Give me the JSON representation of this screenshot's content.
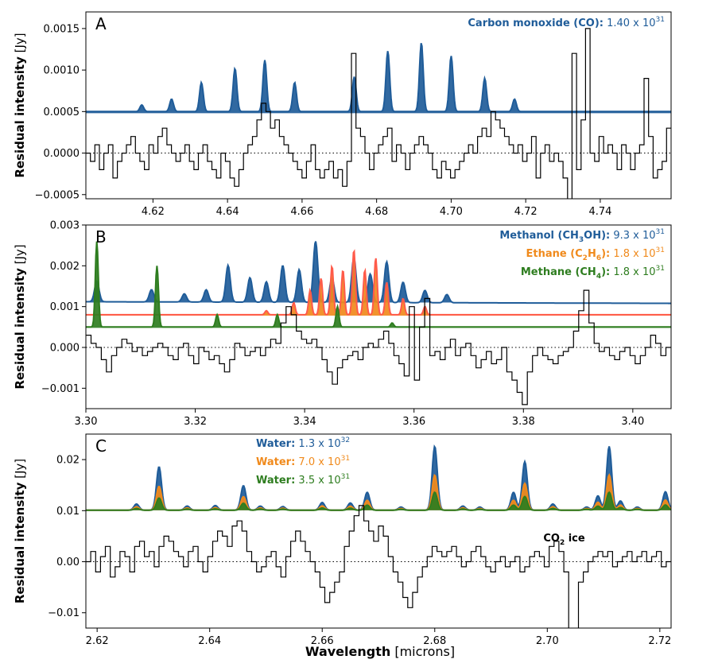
{
  "figure": {
    "xlabel": "Wavelength",
    "xlabel_unit": "[microns]"
  },
  "chart_data": [
    {
      "type": "line",
      "panel": "A",
      "ylabel": "Residual intensity",
      "ylabel_unit": "[Jy]",
      "xlim": [
        4.602,
        4.759
      ],
      "ylim": [
        -0.00055,
        0.0017
      ],
      "xticks": [
        4.62,
        4.64,
        4.66,
        4.68,
        4.7,
        4.72,
        4.74
      ],
      "xtick_labels": [
        "4.62",
        "4.64",
        "4.66",
        "4.68",
        "4.70",
        "4.72",
        "4.74"
      ],
      "yticks": [
        -0.0005,
        0.0,
        0.0005,
        0.001,
        0.0015
      ],
      "ytick_labels": [
        "−0.0005",
        "0.0000",
        "0.0005",
        "0.0010",
        "0.0015"
      ],
      "zero_line": "dotted",
      "legend": [
        {
          "name": "Carbon monoxide (CO):",
          "value_text": "1.40 x 10",
          "exp": "31",
          "color": "#1f5c99"
        }
      ],
      "models": [
        {
          "color": "#1f5c99",
          "baseline": 0.0005,
          "width": 0.0011,
          "lines": [
            [
              4.617,
              8e-05
            ],
            [
              4.625,
              0.00015
            ],
            [
              4.633,
              0.00035
            ],
            [
              4.642,
              0.00052
            ],
            [
              4.65,
              0.00062
            ],
            [
              4.658,
              0.00035
            ],
            [
              4.674,
              0.00042
            ],
            [
              4.683,
              0.00073
            ],
            [
              4.692,
              0.00083
            ],
            [
              4.7,
              0.00067
            ],
            [
              4.709,
              0.0004
            ],
            [
              4.717,
              0.00015
            ]
          ]
        }
      ],
      "residual": {
        "x_start": 4.602,
        "x_end": 4.759,
        "values": [
          0.0,
          -0.0001,
          0.0001,
          -0.0002,
          0.0,
          0.0001,
          -0.0003,
          -0.0001,
          0.0,
          0.0001,
          0.0002,
          0.0,
          -0.0001,
          -0.0002,
          0.0001,
          0.0,
          0.0002,
          0.0003,
          0.0001,
          0.0,
          -0.0001,
          0.0,
          0.0001,
          -0.0001,
          -0.0002,
          0.0,
          0.0001,
          -0.0001,
          -0.0002,
          -0.0003,
          0.0,
          -0.0001,
          -0.0003,
          -0.0004,
          -0.0002,
          0.0,
          0.0001,
          0.0002,
          0.0004,
          0.0006,
          0.0005,
          0.0003,
          0.0004,
          0.0002,
          0.0001,
          0.0,
          -0.0001,
          -0.0002,
          -0.0003,
          -0.0001,
          0.0001,
          -0.0002,
          -0.0003,
          -0.0002,
          -0.0001,
          -0.0003,
          -0.0002,
          -0.0004,
          -0.0001,
          0.0012,
          0.0003,
          0.0002,
          0.0,
          -0.0002,
          0.0,
          0.0001,
          0.0002,
          0.0003,
          -0.0001,
          0.0001,
          0.0,
          -0.0002,
          0.0,
          0.0001,
          0.0002,
          0.0001,
          0.0,
          -0.0002,
          -0.0003,
          -0.0001,
          -0.0002,
          -0.0003,
          -0.0002,
          -0.0001,
          0.0,
          0.0001,
          0.0,
          0.0002,
          0.0003,
          0.0002,
          0.0005,
          0.0004,
          0.0003,
          0.0002,
          0.0001,
          0.0,
          0.0001,
          -0.0001,
          0.0,
          0.0002,
          -0.0003,
          0.0,
          0.0001,
          -0.0001,
          0.0,
          -0.0001,
          -0.0003,
          -0.0006,
          0.0012,
          -0.0002,
          0.0004,
          0.0015,
          0.0,
          -0.0001,
          0.0002,
          0.0,
          0.0001,
          0.0,
          -0.0002,
          0.0001,
          0.0,
          -0.0002,
          0.0,
          0.0001,
          0.0009,
          0.0002,
          -0.0003,
          -0.0002,
          -0.0001,
          0.0003
        ]
      }
    },
    {
      "type": "line",
      "panel": "B",
      "ylabel": "Residual intensity",
      "ylabel_unit": "[Jy]",
      "xlim": [
        3.3,
        3.407
      ],
      "ylim": [
        -0.0015,
        0.003
      ],
      "xticks": [
        3.3,
        3.32,
        3.34,
        3.36,
        3.38,
        3.4
      ],
      "xtick_labels": [
        "3.30",
        "3.32",
        "3.34",
        "3.36",
        "3.38",
        "3.40"
      ],
      "yticks": [
        -0.001,
        0.0,
        0.001,
        0.002,
        0.003
      ],
      "ytick_labels": [
        "−0.001",
        "0.000",
        "0.001",
        "0.002",
        "0.003"
      ],
      "zero_line": "dotted",
      "legend": [
        {
          "name": "Methanol (CH",
          "sub": "3",
          "name2": "OH):",
          "value_text": "9.3 x 10",
          "exp": "31",
          "color": "#1f5c99"
        },
        {
          "name": "Ethane (C",
          "sub": "2",
          "name2": "H",
          "sub2": "6",
          "name3": "):",
          "value_text": "1.8 x 10",
          "exp": "31",
          "color": "#f08a1c"
        },
        {
          "name": "Methane (CH",
          "sub": "4",
          "name2": "):",
          "value_text": "1.8 x 10",
          "exp": "31",
          "color": "#2e7d1f"
        }
      ],
      "models": [
        {
          "color": "#1f5c99",
          "baseline": 0.00112,
          "end_baseline": 0.00108,
          "width": 0.0009,
          "lines": [
            [
              3.302,
              0.0005
            ],
            [
              3.312,
              0.0003
            ],
            [
              3.318,
              0.0002
            ],
            [
              3.322,
              0.0003
            ],
            [
              3.326,
              0.0009
            ],
            [
              3.33,
              0.0006
            ],
            [
              3.333,
              0.0005
            ],
            [
              3.336,
              0.0009
            ],
            [
              3.339,
              0.0008
            ],
            [
              3.342,
              0.0015
            ],
            [
              3.345,
              0.0006
            ],
            [
              3.349,
              0.0011
            ],
            [
              3.352,
              0.0007
            ],
            [
              3.355,
              0.001
            ],
            [
              3.358,
              0.0005
            ],
            [
              3.362,
              0.0003
            ],
            [
              3.366,
              0.0002
            ]
          ]
        },
        {
          "color": "#f08a1c",
          "edge": "#ff5a4a",
          "baseline": 0.0008,
          "width": 0.0006,
          "lines": [
            [
              3.333,
              0.0001
            ],
            [
              3.338,
              0.0003
            ],
            [
              3.341,
              0.0006
            ],
            [
              3.343,
              0.0009
            ],
            [
              3.345,
              0.0012
            ],
            [
              3.347,
              0.0011
            ],
            [
              3.349,
              0.0016
            ],
            [
              3.351,
              0.0011
            ],
            [
              3.353,
              0.0014
            ],
            [
              3.355,
              0.0008
            ],
            [
              3.358,
              0.0004
            ],
            [
              3.362,
              0.0002
            ]
          ]
        },
        {
          "color": "#2e7d1f",
          "baseline": 0.0005,
          "width": 0.0006,
          "lines": [
            [
              3.302,
              0.0021
            ],
            [
              3.313,
              0.0015
            ],
            [
              3.324,
              0.0003
            ],
            [
              3.335,
              0.0003
            ],
            [
              3.346,
              0.0005
            ],
            [
              3.356,
              0.0001
            ]
          ]
        }
      ],
      "residual": {
        "x_start": 3.3,
        "x_end": 3.407,
        "values": [
          0.0003,
          0.0001,
          0.0,
          -0.0003,
          -0.0006,
          -0.0002,
          0.0,
          0.0002,
          0.0001,
          -0.0001,
          0.0,
          -0.0002,
          -0.0001,
          0.0,
          0.0001,
          0.0,
          -0.0002,
          -0.0003,
          0.0,
          0.0001,
          -0.0002,
          -0.0004,
          0.0,
          -0.0001,
          -0.0003,
          -0.0002,
          -0.0004,
          -0.0006,
          -0.0003,
          0.0001,
          0.0,
          -0.0002,
          -0.0001,
          0.0,
          -0.0002,
          0.0,
          0.0002,
          0.0001,
          0.0006,
          0.001,
          0.0008,
          0.0004,
          0.0002,
          0.0001,
          0.0002,
          0.0,
          -0.0003,
          -0.0006,
          -0.0009,
          -0.0005,
          -0.0003,
          -0.0002,
          -0.0001,
          -0.0003,
          0.0,
          0.0001,
          0.0,
          0.0002,
          0.0004,
          0.0001,
          -0.0002,
          -0.0004,
          -0.0007,
          0.001,
          -0.0008,
          0.0005,
          0.0012,
          -0.0002,
          -0.0001,
          -0.0003,
          0.0,
          0.0002,
          -0.0002,
          0.0,
          0.0001,
          -0.0002,
          -0.0005,
          -0.0003,
          -0.0001,
          -0.0004,
          -0.0003,
          0.0,
          -0.0006,
          -0.0008,
          -0.0011,
          -0.0014,
          -0.0006,
          -0.0002,
          0.0,
          -0.0002,
          -0.0003,
          -0.0004,
          -0.0002,
          -0.0001,
          0.0,
          0.0004,
          0.0009,
          0.0014,
          0.0006,
          0.0001,
          -0.0001,
          0.0,
          -0.0002,
          -0.0003,
          -0.0001,
          0.0,
          -0.0002,
          -0.0004,
          -0.0002,
          0.0,
          0.0003,
          0.0001,
          -0.0002,
          0.0
        ]
      }
    },
    {
      "type": "line",
      "panel": "C",
      "ylabel": "Residual intensity",
      "ylabel_unit": "[Jy]",
      "xlim": [
        2.618,
        2.722
      ],
      "ylim": [
        -0.013,
        0.025
      ],
      "xticks": [
        2.62,
        2.64,
        2.66,
        2.68,
        2.7,
        2.72
      ],
      "xtick_labels": [
        "2.62",
        "2.64",
        "2.66",
        "2.68",
        "2.70",
        "2.72"
      ],
      "yticks": [
        -0.01,
        0.0,
        0.01,
        0.02
      ],
      "ytick_labels": [
        "−0.01",
        "0.00",
        "0.01",
        "0.02"
      ],
      "zero_line": "dotted",
      "annotation": {
        "text": "CO",
        "sub": "2",
        "text2": " ice",
        "x": 2.703,
        "y": 0.004
      },
      "legend": [
        {
          "name": "Water:",
          "value_text": "1.3 x 10",
          "exp": "32",
          "color": "#1f5c99"
        },
        {
          "name": "Water:",
          "value_text": "7.0 x 10",
          "exp": "31",
          "color": "#f08a1c"
        },
        {
          "name": "Water:",
          "value_text": "3.5 x 10",
          "exp": "31",
          "color": "#2e7d1f"
        }
      ],
      "lines": [
        [
          2.627,
          0.12
        ],
        [
          2.631,
          0.85
        ],
        [
          2.636,
          0.08
        ],
        [
          2.641,
          0.09
        ],
        [
          2.646,
          0.48
        ],
        [
          2.649,
          0.08
        ],
        [
          2.653,
          0.07
        ],
        [
          2.66,
          0.15
        ],
        [
          2.665,
          0.14
        ],
        [
          2.668,
          0.35
        ],
        [
          2.674,
          0.06
        ],
        [
          2.68,
          1.25
        ],
        [
          2.685,
          0.08
        ],
        [
          2.688,
          0.06
        ],
        [
          2.694,
          0.35
        ],
        [
          2.696,
          0.95
        ],
        [
          2.701,
          0.12
        ],
        [
          2.707,
          0.06
        ],
        [
          2.709,
          0.28
        ],
        [
          2.711,
          1.25
        ],
        [
          2.713,
          0.18
        ],
        [
          2.716,
          0.06
        ],
        [
          2.721,
          0.36
        ]
      ],
      "models": [
        {
          "color": "#1f5c99",
          "baseline": 0.0101,
          "scale": 0.01
        },
        {
          "color": "#f08a1c",
          "baseline": 0.0101,
          "scale": 0.0055
        },
        {
          "color": "#2e7d1f",
          "baseline": 0.0101,
          "scale": 0.0028
        }
      ],
      "residual": {
        "x_start": 2.618,
        "x_end": 2.722,
        "values": [
          0.0,
          0.002,
          -0.002,
          0.001,
          0.003,
          -0.003,
          -0.001,
          0.002,
          0.001,
          -0.002,
          0.003,
          0.004,
          0.001,
          0.002,
          -0.001,
          0.003,
          0.005,
          0.004,
          0.002,
          0.001,
          -0.001,
          0.002,
          0.003,
          0.0,
          -0.002,
          0.001,
          0.004,
          0.006,
          0.005,
          0.003,
          0.007,
          0.008,
          0.006,
          0.002,
          0.0,
          -0.002,
          -0.001,
          0.001,
          0.002,
          -0.001,
          -0.003,
          0.001,
          0.004,
          0.006,
          0.004,
          0.002,
          0.0,
          -0.002,
          -0.005,
          -0.008,
          -0.006,
          -0.004,
          -0.002,
          0.003,
          0.006,
          0.009,
          0.011,
          0.008,
          0.006,
          0.004,
          0.007,
          0.005,
          0.001,
          -0.002,
          -0.004,
          -0.007,
          -0.009,
          -0.006,
          -0.003,
          -0.001,
          0.001,
          0.003,
          0.002,
          0.001,
          0.002,
          0.003,
          0.001,
          -0.001,
          0.0,
          0.002,
          0.003,
          0.001,
          -0.001,
          -0.002,
          0.0,
          0.001,
          -0.001,
          0.0,
          0.001,
          -0.002,
          -0.001,
          0.001,
          0.002,
          0.001,
          -0.001,
          0.003,
          0.004,
          0.002,
          -0.002,
          -0.014,
          -0.016,
          -0.004,
          -0.002,
          0.0,
          0.001,
          0.002,
          0.001,
          0.002,
          -0.001,
          0.0,
          0.001,
          0.002,
          0.0,
          0.001,
          0.002,
          0.0,
          0.001,
          0.002,
          -0.001,
          0.0
        ]
      }
    }
  ]
}
